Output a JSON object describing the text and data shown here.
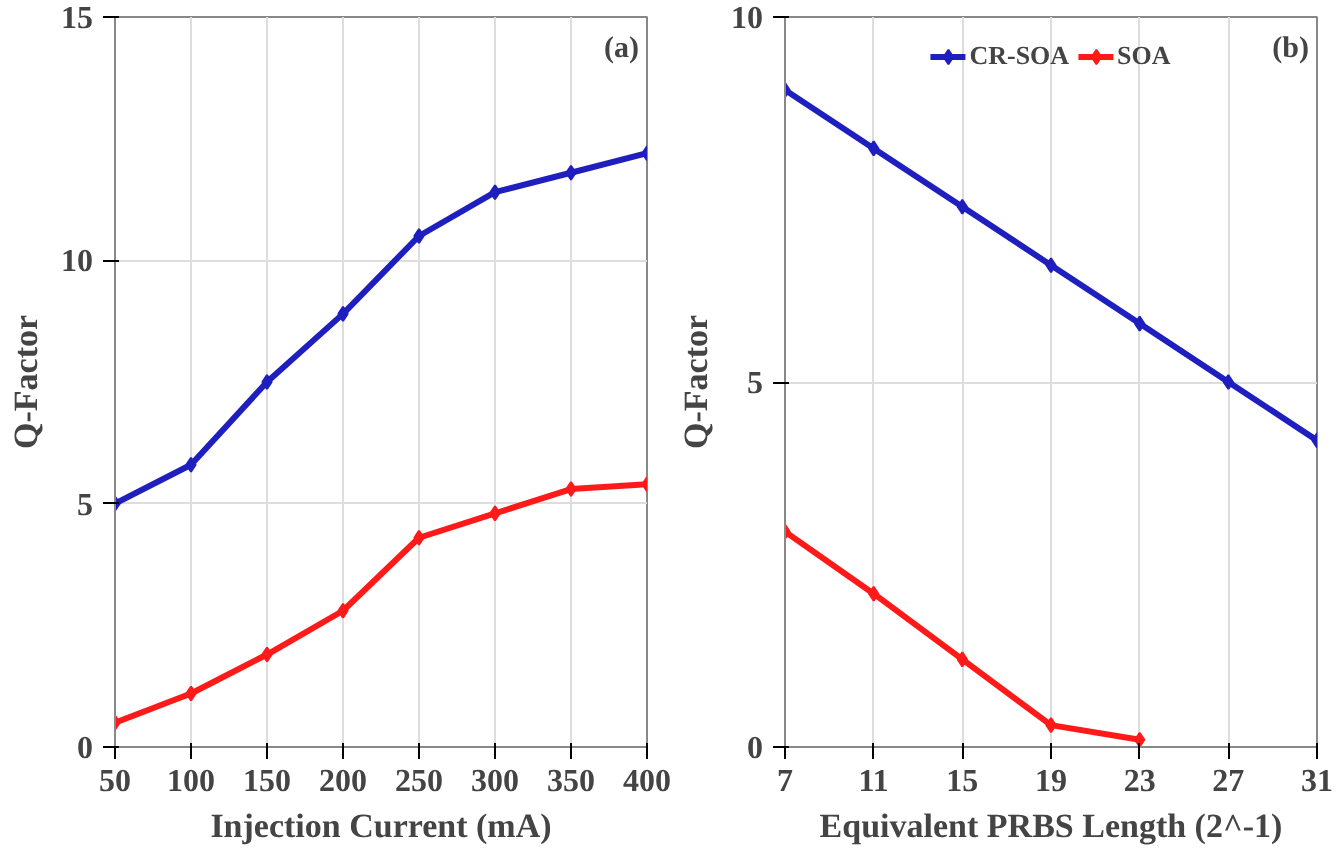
{
  "chart_data": [
    {
      "type": "line",
      "xlabel": "Injection Current (mA)",
      "ylabel": "Q-Factor",
      "annotations": [
        "(a)"
      ],
      "x": [
        50,
        100,
        150,
        200,
        250,
        300,
        350,
        400
      ],
      "xlim": [
        50,
        400
      ],
      "xticks": [
        50,
        100,
        150,
        200,
        250,
        300,
        350,
        400
      ],
      "ylim": [
        0,
        15
      ],
      "yticks": [
        0,
        5,
        10,
        15
      ],
      "grid": true,
      "marker": "diamond",
      "line_style": "solid",
      "series": [
        {
          "color": "#1f1fbf",
          "values": [
            5.0,
            5.8,
            7.5,
            8.9,
            10.5,
            11.4,
            11.8,
            12.2
          ]
        },
        {
          "color": "#ff1a1a",
          "values": [
            0.5,
            1.1,
            1.9,
            2.8,
            4.3,
            4.8,
            5.3,
            5.4
          ]
        }
      ]
    },
    {
      "type": "line",
      "xlabel": "Equivalent PRBS Length (2^-1)",
      "ylabel": "Q-Factor",
      "annotations": [
        "(b)"
      ],
      "xlim": [
        7,
        31
      ],
      "xticks": [
        7,
        11,
        15,
        19,
        23,
        27,
        31
      ],
      "ylim": [
        0,
        10
      ],
      "yticks": [
        0,
        5,
        10
      ],
      "grid": true,
      "legend": "top",
      "marker": "diamond",
      "line_style": "solid",
      "series": [
        {
          "name": "CR-SOA",
          "color": "#1f1fbf",
          "x": [
            7,
            11,
            15,
            19,
            23,
            27,
            31
          ],
          "values": [
            9.0,
            8.2,
            7.4,
            6.6,
            5.8,
            5.0,
            4.2
          ]
        },
        {
          "name": "SOA",
          "color": "#ff1a1a",
          "x": [
            7,
            11,
            15,
            19,
            23
          ],
          "values": [
            2.95,
            2.1,
            1.2,
            0.3,
            0.1
          ]
        }
      ]
    }
  ]
}
